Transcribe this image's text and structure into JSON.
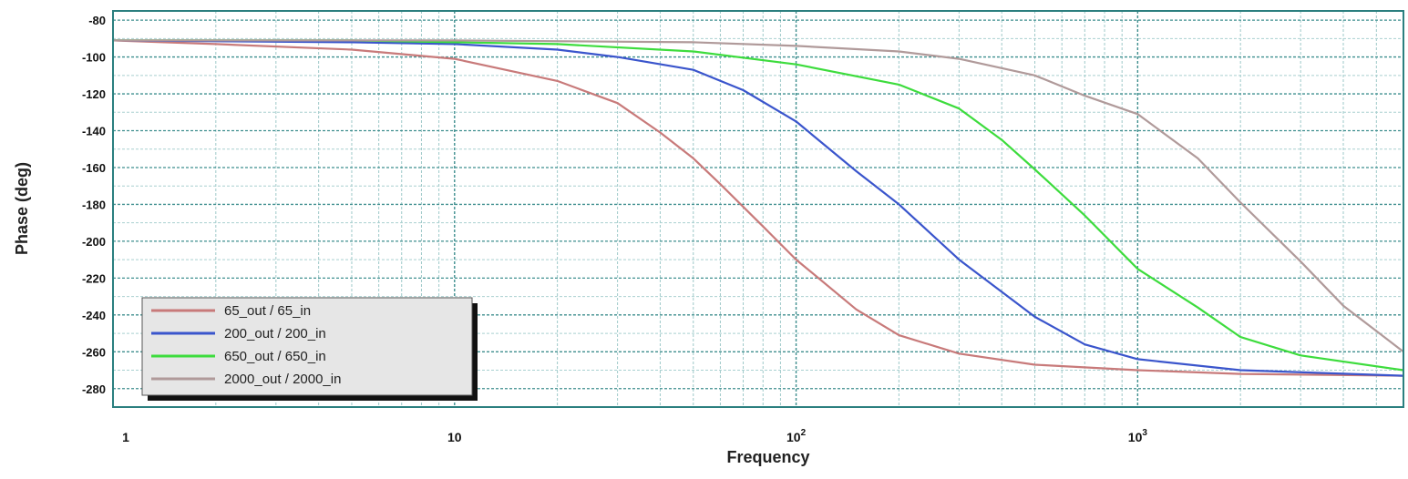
{
  "chart_data": {
    "type": "line",
    "title": "",
    "xlabel": "Frequency",
    "ylabel": "Phase (deg)",
    "xscale": "log",
    "xlim": [
      1,
      6000
    ],
    "ylim": [
      -290,
      -75
    ],
    "grid": true,
    "legend_position": "bottom-left",
    "yticks": [
      {
        "value": -80,
        "label": "-80"
      },
      {
        "value": -100,
        "label": "-100"
      },
      {
        "value": -120,
        "label": "-120"
      },
      {
        "value": -140,
        "label": "-140"
      },
      {
        "value": -160,
        "label": "-160"
      },
      {
        "value": -180,
        "label": "-180"
      },
      {
        "value": -200,
        "label": "-200"
      },
      {
        "value": -220,
        "label": "-220"
      },
      {
        "value": -240,
        "label": "-240"
      },
      {
        "value": -260,
        "label": "-260"
      },
      {
        "value": -280,
        "label": "-280"
      }
    ],
    "xticks": [
      {
        "value": 1,
        "label": "1"
      },
      {
        "value": 10,
        "label": "10"
      },
      {
        "value": 100,
        "label": "10",
        "exp": "2"
      },
      {
        "value": 1000,
        "label": "10",
        "exp": "3"
      }
    ],
    "series": [
      {
        "name": "65_out / 65_in",
        "color": "#c87a7a",
        "x": [
          1,
          2,
          5,
          10,
          20,
          30,
          40,
          50,
          60,
          80,
          100,
          150,
          200,
          300,
          500,
          1000,
          2000,
          6000
        ],
        "y": [
          -91,
          -93,
          -96,
          -101,
          -113,
          -125,
          -141,
          -155,
          -169,
          -192,
          -210,
          -237,
          -251,
          -261,
          -267,
          -270,
          -272,
          -273
        ]
      },
      {
        "name": "200_out / 200_in",
        "color": "#3a55cc",
        "x": [
          1,
          5,
          10,
          20,
          30,
          50,
          70,
          100,
          150,
          200,
          300,
          500,
          700,
          1000,
          2000,
          6000
        ],
        "y": [
          -91,
          -92,
          -93,
          -96,
          -100,
          -107,
          -118,
          -135,
          -162,
          -180,
          -210,
          -241,
          -256,
          -264,
          -270,
          -273
        ]
      },
      {
        "name": "650_out / 650_in",
        "color": "#3ddc3d",
        "x": [
          1,
          5,
          10,
          20,
          50,
          100,
          200,
          300,
          400,
          500,
          700,
          1000,
          1500,
          2000,
          3000,
          6000
        ],
        "y": [
          -91,
          -91,
          -92,
          -93,
          -97,
          -104,
          -115,
          -128,
          -145,
          -161,
          -186,
          -215,
          -236,
          -252,
          -262,
          -270
        ]
      },
      {
        "name": "2000_out / 2000_in",
        "color": "#b09a9a",
        "x": [
          1,
          10,
          50,
          100,
          200,
          300,
          500,
          700,
          1000,
          1500,
          2000,
          3000,
          4000,
          6000
        ],
        "y": [
          -91,
          -91,
          -92,
          -94,
          -97,
          -101,
          -110,
          -121,
          -131,
          -155,
          -179,
          -211,
          -235,
          -260
        ]
      }
    ]
  }
}
